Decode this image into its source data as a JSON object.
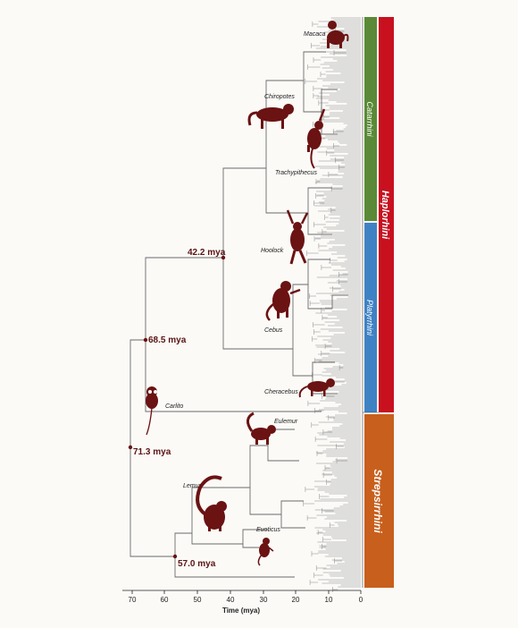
{
  "node_labels": [
    "71.3 mya",
    "68.5 mya",
    "42.2 mya",
    "57.0 mya"
  ],
  "taxa": [
    "Macaca",
    "Chiropotes",
    "Trachypithecus",
    "Hoolock",
    "Cebus",
    "Cheracebus",
    "Carlito",
    "Eulemur",
    "Lemur",
    "Euoticus"
  ],
  "clades": {
    "catarrhini": "Catarrhini",
    "platyrrhini": "Platyrrhini",
    "haplorhini": "Haplorhini",
    "strepsirrhini": "Strepsirrhini"
  },
  "axis": {
    "title": "Time (mya)",
    "ticks": [
      "70",
      "60",
      "50",
      "40",
      "30",
      "20",
      "10",
      "0"
    ]
  },
  "colors": {
    "branch": "#6b6b6b",
    "catarrhini": "#5a8a37",
    "platyrrhini": "#3f82c4",
    "haplorhini": "#c8101f",
    "strepsirrhini": "#c85f1c",
    "node": "#6b1212"
  },
  "icons": [
    "macaca-silhouette-icon",
    "chiropotes-silhouette-icon",
    "trachypithecus-silhouette-icon",
    "hoolock-silhouette-icon",
    "cebus-silhouette-icon",
    "cheracebus-silhouette-icon",
    "carlito-silhouette-icon",
    "eulemur-silhouette-icon",
    "lemur-silhouette-icon",
    "euoticus-silhouette-icon"
  ]
}
